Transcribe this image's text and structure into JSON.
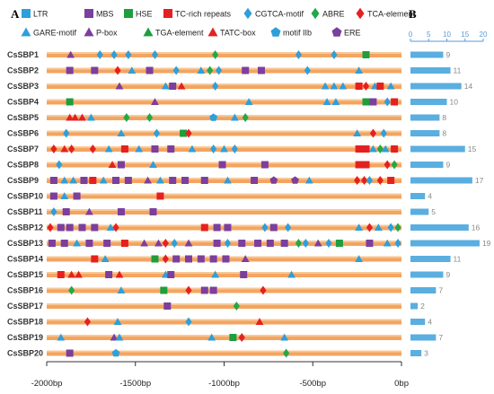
{
  "panels": {
    "a": "A",
    "b": "B"
  },
  "legend": [
    {
      "key": "LTR",
      "label": "LTR",
      "color": "#2e9fdb",
      "shape": "square"
    },
    {
      "key": "MBS",
      "label": "MBS",
      "color": "#7b3f9e",
      "shape": "square"
    },
    {
      "key": "HSE",
      "label": "HSE",
      "color": "#1e9e3e",
      "shape": "square"
    },
    {
      "key": "TC",
      "label": "TC-rich repeats",
      "color": "#e52020",
      "shape": "square"
    },
    {
      "key": "CGTCA",
      "label": "CGTCA-motif",
      "color": "#2e9fdb",
      "shape": "diamond"
    },
    {
      "key": "ABRE",
      "label": "ABRE",
      "color": "#22a84a",
      "shape": "diamond"
    },
    {
      "key": "TCA",
      "label": "TCA-element",
      "color": "#e52020",
      "shape": "diamond"
    },
    {
      "key": "GARE",
      "label": "GARE-motif",
      "color": "#2e9fdb",
      "shape": "triangle"
    },
    {
      "key": "PBOX",
      "label": "P-box",
      "color": "#7b3f9e",
      "shape": "triangle"
    },
    {
      "key": "TGA",
      "label": "TGA-element",
      "color": "#1e9e3e",
      "shape": "triangle"
    },
    {
      "key": "TATC",
      "label": "TATC-box",
      "color": "#e52020",
      "shape": "triangle"
    },
    {
      "key": "IIB",
      "label": "motif IIb",
      "color": "#2e9fdb",
      "shape": "pentagon"
    },
    {
      "key": "ERE",
      "label": "ERE",
      "color": "#7b3f9e",
      "shape": "pentagon"
    }
  ],
  "chart_data": [
    {
      "type": "diagram",
      "x_axis": {
        "ticks": [
          "-2000bp",
          "-1500bp",
          "-1000bp",
          "-500bp",
          "0bp"
        ],
        "min": -2000,
        "max": 0
      },
      "genes": [
        {
          "name": "CsSBP1",
          "elements": [
            [
              "PBOX",
              -1865
            ],
            [
              "CGTCA",
              -1700
            ],
            [
              "CGTCA",
              -1620
            ],
            [
              "CGTCA",
              -1540
            ],
            [
              "CGTCA",
              -1390
            ],
            [
              "ABRE",
              -1050
            ],
            [
              "CGTCA",
              -580
            ],
            [
              "CGTCA",
              -380
            ],
            [
              "HSE",
              -200
            ]
          ]
        },
        {
          "name": "CsSBP2",
          "elements": [
            [
              "MBS",
              -1870
            ],
            [
              "MBS",
              -1730
            ],
            [
              "TCA",
              -1600
            ],
            [
              "GARE",
              -1520
            ],
            [
              "MBS",
              -1420
            ],
            [
              "CGTCA",
              -1270
            ],
            [
              "GARE",
              -1130
            ],
            [
              "ABRE",
              -1080
            ],
            [
              "CGTCA",
              -1030
            ],
            [
              "MBS",
              -880
            ],
            [
              "MBS",
              -790
            ],
            [
              "CGTCA",
              -530
            ],
            [
              "GARE",
              -240
            ]
          ]
        },
        {
          "name": "CsSBP3",
          "elements": [
            [
              "PBOX",
              -1590
            ],
            [
              "GARE",
              -1330
            ],
            [
              "MBS",
              -1290
            ],
            [
              "TATC",
              -1240
            ],
            [
              "CGTCA",
              -1050
            ],
            [
              "GARE",
              -430
            ],
            [
              "GARE",
              -380
            ],
            [
              "GARE",
              -330
            ],
            [
              "TC",
              -240
            ],
            [
              "TCA",
              -200
            ],
            [
              "GARE",
              -150
            ],
            [
              "TC",
              -120
            ],
            [
              "GARE",
              -60
            ]
          ]
        },
        {
          "name": "CsSBP4",
          "elements": [
            [
              "HSE",
              -1870
            ],
            [
              "PBOX",
              -1390
            ],
            [
              "GARE",
              -860
            ],
            [
              "GARE",
              -420
            ],
            [
              "GARE",
              -370
            ],
            [
              "HSE",
              -200
            ],
            [
              "MBS",
              -160
            ],
            [
              "CGTCA",
              -80
            ],
            [
              "TC",
              -40
            ]
          ]
        },
        {
          "name": "CsSBP5",
          "elements": [
            [
              "TATC",
              -1870
            ],
            [
              "TATC",
              -1840
            ],
            [
              "TATC",
              -1800
            ],
            [
              "GARE",
              -1750
            ],
            [
              "ABRE",
              -1550
            ],
            [
              "ABRE",
              -1420
            ],
            [
              "IIB",
              -1060
            ],
            [
              "GARE",
              -940
            ],
            [
              "ABRE",
              -880
            ]
          ]
        },
        {
          "name": "CsSBP6",
          "elements": [
            [
              "CGTCA",
              -1890
            ],
            [
              "GARE",
              -1580
            ],
            [
              "CGTCA",
              -1380
            ],
            [
              "HSE",
              -1230
            ],
            [
              "TCA",
              -1200
            ],
            [
              "GARE",
              -250
            ],
            [
              "TCA",
              -160
            ],
            [
              "CGTCA",
              -100
            ]
          ]
        },
        {
          "name": "CsSBP7",
          "elements": [
            [
              "TCA",
              -1960
            ],
            [
              "TATC",
              -1900
            ],
            [
              "TCA",
              -1860
            ],
            [
              "TCA",
              -1740
            ],
            [
              "GARE",
              -1650
            ],
            [
              "TC",
              -1560
            ],
            [
              "GARE",
              -1480
            ],
            [
              "MBS",
              -1390
            ],
            [
              "MBS",
              -1300
            ],
            [
              "GARE",
              -1180
            ],
            [
              "CGTCA",
              -1060
            ],
            [
              "GARE",
              -1000
            ],
            [
              "CGTCA",
              -940
            ],
            [
              "TC",
              -240
            ],
            [
              "TC",
              -200
            ],
            [
              "GARE",
              -160
            ],
            [
              "ABRE",
              -120
            ],
            [
              "GARE",
              -90
            ],
            [
              "TC",
              -40
            ]
          ]
        },
        {
          "name": "CsSBP8",
          "elements": [
            [
              "CGTCA",
              -1930
            ],
            [
              "TATC",
              -1630
            ],
            [
              "MBS",
              -1580
            ],
            [
              "GARE",
              -1400
            ],
            [
              "MBS",
              -1010
            ],
            [
              "MBS",
              -770
            ],
            [
              "TC",
              -240
            ],
            [
              "TC",
              -200
            ],
            [
              "TCA",
              -80
            ],
            [
              "ABRE",
              -40
            ]
          ]
        },
        {
          "name": "CsSBP9",
          "elements": [
            [
              "MBS",
              -1960
            ],
            [
              "GARE",
              -1900
            ],
            [
              "GARE",
              -1850
            ],
            [
              "MBS",
              -1790
            ],
            [
              "TC",
              -1740
            ],
            [
              "GARE",
              -1680
            ],
            [
              "MBS",
              -1610
            ],
            [
              "MBS",
              -1540
            ],
            [
              "PBOX",
              -1430
            ],
            [
              "GARE",
              -1360
            ],
            [
              "MBS",
              -1290
            ],
            [
              "MBS",
              -1220
            ],
            [
              "MBS",
              -1110
            ],
            [
              "GARE",
              -980
            ],
            [
              "MBS",
              -830
            ],
            [
              "ERE",
              -720
            ],
            [
              "ERE",
              -600
            ],
            [
              "GARE",
              -520
            ],
            [
              "TCA",
              -250
            ],
            [
              "TCA",
              -210
            ],
            [
              "CGTCA",
              -180
            ],
            [
              "TCA",
              -120
            ],
            [
              "TC",
              -60
            ]
          ]
        },
        {
          "name": "CsSBP10",
          "elements": [
            [
              "MBS",
              -1960
            ],
            [
              "GARE",
              -1900
            ],
            [
              "MBS",
              -1830
            ],
            [
              "TC",
              -1360
            ]
          ]
        },
        {
          "name": "CsSBP11",
          "elements": [
            [
              "CGTCA",
              -1960
            ],
            [
              "MBS",
              -1890
            ],
            [
              "PBOX",
              -1760
            ],
            [
              "MBS",
              -1580
            ],
            [
              "MBS",
              -1400
            ]
          ]
        },
        {
          "name": "CsSBP12",
          "elements": [
            [
              "TCA",
              -1980
            ],
            [
              "MBS",
              -1920
            ],
            [
              "MBS",
              -1870
            ],
            [
              "MBS",
              -1800
            ],
            [
              "MBS",
              -1730
            ],
            [
              "GARE",
              -1640
            ],
            [
              "TCA",
              -1610
            ],
            [
              "TC",
              -1110
            ],
            [
              "MBS",
              -1040
            ],
            [
              "MBS",
              -980
            ],
            [
              "CGTCA",
              -770
            ],
            [
              "MBS",
              -720
            ],
            [
              "CGTCA",
              -640
            ],
            [
              "GARE",
              -240
            ],
            [
              "TCA",
              -180
            ],
            [
              "GARE",
              -130
            ],
            [
              "CGTCA",
              -60
            ],
            [
              "ABRE",
              -20
            ]
          ]
        },
        {
          "name": "CsSBP13",
          "elements": [
            [
              "MBS",
              -1970
            ],
            [
              "MBS",
              -1900
            ],
            [
              "GARE",
              -1830
            ],
            [
              "MBS",
              -1760
            ],
            [
              "MBS",
              -1660
            ],
            [
              "TC",
              -1560
            ],
            [
              "PBOX",
              -1450
            ],
            [
              "PBOX",
              -1370
            ],
            [
              "TCA",
              -1330
            ],
            [
              "CGTCA",
              -1280
            ],
            [
              "PBOX",
              -1200
            ],
            [
              "MBS",
              -1040
            ],
            [
              "CGTCA",
              -980
            ],
            [
              "MBS",
              -900
            ],
            [
              "MBS",
              -810
            ],
            [
              "MBS",
              -740
            ],
            [
              "MBS",
              -660
            ],
            [
              "ABRE",
              -580
            ],
            [
              "CGTCA",
              -540
            ],
            [
              "PBOX",
              -470
            ],
            [
              "CGTCA",
              -410
            ],
            [
              "HSE",
              -350
            ],
            [
              "MBS",
              -180
            ],
            [
              "GARE",
              -80
            ],
            [
              "CGTCA",
              -20
            ]
          ]
        },
        {
          "name": "CsSBP14",
          "elements": [
            [
              "TC",
              -1730
            ],
            [
              "GARE",
              -1670
            ],
            [
              "HSE",
              -1390
            ],
            [
              "TCA",
              -1330
            ],
            [
              "MBS",
              -1270
            ],
            [
              "MBS",
              -1200
            ],
            [
              "MBS",
              -1130
            ],
            [
              "MBS",
              -1060
            ],
            [
              "MBS",
              -990
            ],
            [
              "PBOX",
              -880
            ],
            [
              "GARE",
              -240
            ]
          ]
        },
        {
          "name": "CsSBP15",
          "elements": [
            [
              "TC",
              -1920
            ],
            [
              "TATC",
              -1860
            ],
            [
              "TATC",
              -1820
            ],
            [
              "MBS",
              -1650
            ],
            [
              "TATC",
              -1590
            ],
            [
              "GARE",
              -1330
            ],
            [
              "MBS",
              -1300
            ],
            [
              "GARE",
              -1050
            ],
            [
              "MBS",
              -890
            ],
            [
              "GARE",
              -620
            ]
          ]
        },
        {
          "name": "CsSBP16",
          "elements": [
            [
              "ABRE",
              -1860
            ],
            [
              "GARE",
              -1580
            ],
            [
              "HSE",
              -1340
            ],
            [
              "TCA",
              -1200
            ],
            [
              "MBS",
              -1110
            ],
            [
              "MBS",
              -1060
            ],
            [
              "TCA",
              -780
            ]
          ]
        },
        {
          "name": "CsSBP17",
          "elements": [
            [
              "MBS",
              -1320
            ],
            [
              "ABRE",
              -930
            ]
          ]
        },
        {
          "name": "CsSBP18",
          "elements": [
            [
              "TCA",
              -1770
            ],
            [
              "GARE",
              -1600
            ],
            [
              "CGTCA",
              -1200
            ],
            [
              "TATC",
              -800
            ]
          ]
        },
        {
          "name": "CsSBP19",
          "elements": [
            [
              "GARE",
              -1920
            ],
            [
              "PBOX",
              -1620
            ],
            [
              "GARE",
              -1590
            ],
            [
              "GARE",
              -1070
            ],
            [
              "HSE",
              -950
            ],
            [
              "TCA",
              -900
            ],
            [
              "GARE",
              -660
            ]
          ]
        },
        {
          "name": "CsSBP20",
          "elements": [
            [
              "MBS",
              -1870
            ],
            [
              "IIB",
              -1610
            ],
            [
              "ABRE",
              -650
            ]
          ]
        }
      ]
    },
    {
      "type": "bar",
      "categories": [
        "CsSBP1",
        "CsSBP2",
        "CsSBP3",
        "CsSBP4",
        "CsSBP5",
        "CsSBP6",
        "CsSBP7",
        "CsSBP8",
        "CsSBP9",
        "CsSBP10",
        "CsSBP11",
        "CsSBP12",
        "CsSBP13",
        "CsSBP14",
        "CsSBP15",
        "CsSBP16",
        "CsSBP17",
        "CsSBP18",
        "CsSBP19",
        "CsSBP20"
      ],
      "values": [
        9,
        11,
        14,
        10,
        8,
        8,
        15,
        9,
        17,
        4,
        5,
        16,
        19,
        11,
        9,
        7,
        2,
        4,
        7,
        3
      ],
      "x_ticks": [
        "0",
        "5",
        "10",
        "15",
        "20"
      ],
      "xlim": [
        0,
        20
      ],
      "color": "#5aaee0",
      "orientation": "horizontal"
    }
  ]
}
